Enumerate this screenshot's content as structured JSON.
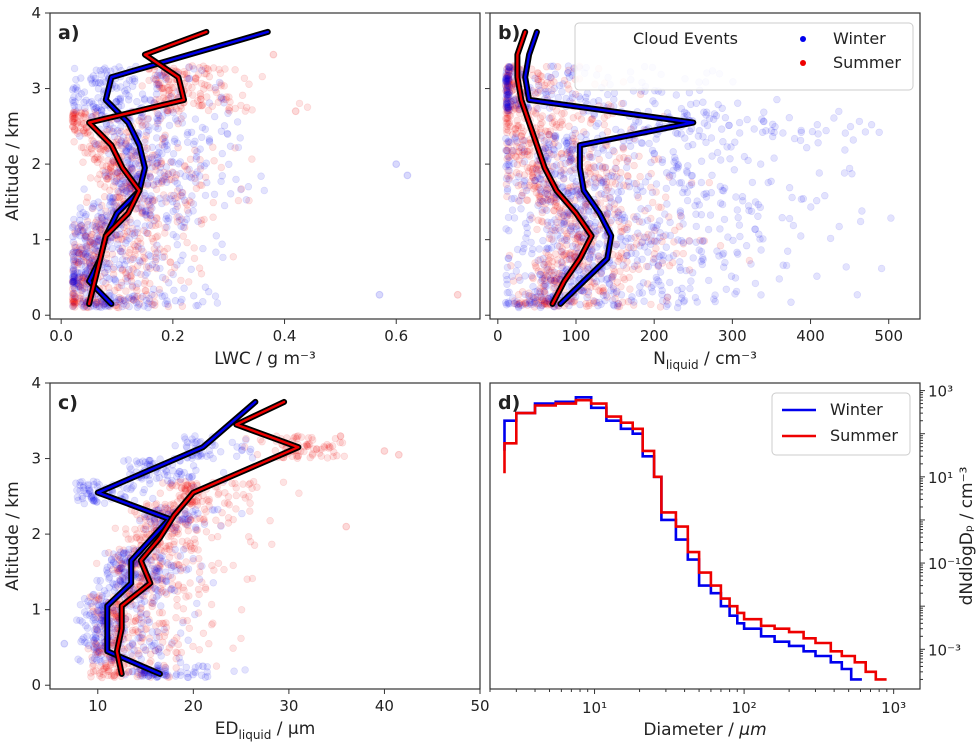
{
  "figure": {
    "legend_title": "Cloud Events",
    "legend_winter": "Winter",
    "legend_summer": "Summer"
  },
  "colors": {
    "winter": "#0000ee",
    "summer": "#ee0000",
    "outline": "#000000"
  },
  "chart_data": [
    {
      "panel": "a)",
      "type": "scatter",
      "xlabel": "LWC / g m⁻³",
      "ylabel": "Altitude / km",
      "xlim": [
        -0.02,
        0.75
      ],
      "ylim": [
        -0.05,
        4
      ],
      "xticks": [
        0.0,
        0.2,
        0.4,
        0.6
      ],
      "xticklabels": [
        "0.0",
        "0.2",
        "0.4",
        "0.6"
      ],
      "yticks": [
        0,
        1,
        2,
        3,
        4
      ],
      "scatter_cloud": {
        "winter": {
          "x_range": [
            0.02,
            0.65
          ],
          "y_range": [
            0.1,
            3.2
          ],
          "outliers": [
            [
              0.6,
              2.0
            ],
            [
              0.57,
              0.27
            ],
            [
              0.62,
              1.85
            ]
          ]
        },
        "summer": {
          "x_range": [
            0.02,
            0.72
          ],
          "y_range": [
            0.1,
            3.5
          ],
          "outliers": [
            [
              0.71,
              0.27
            ],
            [
              0.42,
              2.7
            ],
            [
              0.38,
              3.45
            ]
          ]
        }
      },
      "series": [
        {
          "name": "Winter",
          "profile": [
            [
              0.09,
              0.15
            ],
            [
              0.05,
              0.45
            ],
            [
              0.07,
              0.75
            ],
            [
              0.08,
              1.05
            ],
            [
              0.1,
              1.35
            ],
            [
              0.14,
              1.65
            ],
            [
              0.15,
              1.95
            ],
            [
              0.14,
              2.25
            ],
            [
              0.12,
              2.55
            ],
            [
              0.08,
              2.85
            ],
            [
              0.09,
              3.15
            ],
            [
              0.37,
              3.75
            ]
          ]
        },
        {
          "name": "Summer",
          "profile": [
            [
              0.05,
              0.15
            ],
            [
              0.06,
              0.45
            ],
            [
              0.07,
              0.75
            ],
            [
              0.08,
              1.05
            ],
            [
              0.12,
              1.35
            ],
            [
              0.14,
              1.65
            ],
            [
              0.11,
              1.95
            ],
            [
              0.09,
              2.25
            ],
            [
              0.05,
              2.55
            ],
            [
              0.22,
              2.85
            ],
            [
              0.21,
              3.15
            ],
            [
              0.15,
              3.45
            ],
            [
              0.26,
              3.75
            ]
          ]
        }
      ]
    },
    {
      "panel": "b)",
      "type": "scatter",
      "xlabel_main": "N",
      "xlabel_sub": "liquid",
      "xlabel_rest": " / cm⁻³",
      "xlim": [
        -10,
        540
      ],
      "ylim": [
        -0.05,
        4
      ],
      "xticks": [
        0,
        100,
        200,
        300,
        400,
        500
      ],
      "xticklabels": [
        "0",
        "100",
        "200",
        "300",
        "400",
        "500"
      ],
      "yticks": [
        0,
        1,
        2,
        3,
        4
      ],
      "scatter_cloud": {
        "winter": {
          "x_range": [
            10,
            520
          ],
          "y_range": [
            0.1,
            3.3
          ]
        },
        "summer": {
          "x_range": [
            10,
            330
          ],
          "y_range": [
            0.1,
            3.3
          ]
        }
      },
      "series": [
        {
          "name": "Winter",
          "profile": [
            [
              80,
              0.15
            ],
            [
              110,
              0.45
            ],
            [
              140,
              0.75
            ],
            [
              145,
              1.05
            ],
            [
              130,
              1.35
            ],
            [
              110,
              1.65
            ],
            [
              105,
              1.95
            ],
            [
              105,
              2.25
            ],
            [
              250,
              2.55
            ],
            [
              40,
              2.85
            ],
            [
              35,
              3.15
            ],
            [
              40,
              3.45
            ],
            [
              50,
              3.75
            ]
          ]
        },
        {
          "name": "Summer",
          "profile": [
            [
              70,
              0.15
            ],
            [
              85,
              0.45
            ],
            [
              105,
              0.75
            ],
            [
              120,
              1.05
            ],
            [
              100,
              1.35
            ],
            [
              75,
              1.65
            ],
            [
              60,
              1.95
            ],
            [
              50,
              2.25
            ],
            [
              40,
              2.55
            ],
            [
              30,
              2.85
            ],
            [
              25,
              3.15
            ],
            [
              25,
              3.45
            ],
            [
              35,
              3.75
            ]
          ]
        }
      ]
    },
    {
      "panel": "c)",
      "type": "scatter",
      "xlabel_main": "ED",
      "xlabel_sub": "liquid",
      "xlabel_rest": " / μm",
      "ylabel": "Altitude / km",
      "xlim": [
        5,
        50
      ],
      "ylim": [
        -0.05,
        4
      ],
      "xticks": [
        10,
        20,
        30,
        40,
        50
      ],
      "xticklabels": [
        "10",
        "20",
        "30",
        "40",
        "50"
      ],
      "yticks": [
        0,
        1,
        2,
        3,
        4
      ],
      "scatter_cloud": {
        "winter": {
          "x_range": [
            7,
            30
          ],
          "y_range": [
            0.1,
            3.3
          ],
          "outliers": [
            [
              21,
              0.25
            ],
            [
              6.5,
              0.55
            ]
          ]
        },
        "summer": {
          "x_range": [
            8,
            42
          ],
          "y_range": [
            0.1,
            3.5
          ],
          "outliers": [
            [
              40,
              3.1
            ],
            [
              41.5,
              3.05
            ],
            [
              36,
              2.1
            ]
          ]
        }
      },
      "series": [
        {
          "name": "Winter",
          "profile": [
            [
              16.5,
              0.15
            ],
            [
              11,
              0.45
            ],
            [
              11,
              0.75
            ],
            [
              11,
              1.05
            ],
            [
              13.5,
              1.35
            ],
            [
              13.5,
              1.65
            ],
            [
              17.5,
              2.2
            ],
            [
              10,
              2.55
            ],
            [
              15.5,
              2.85
            ],
            [
              21,
              3.15
            ],
            [
              26.5,
              3.75
            ]
          ]
        },
        {
          "name": "Summer",
          "profile": [
            [
              12.5,
              0.15
            ],
            [
              12,
              0.45
            ],
            [
              12.5,
              0.75
            ],
            [
              12.5,
              1.05
            ],
            [
              15.5,
              1.35
            ],
            [
              14.5,
              1.65
            ],
            [
              16.5,
              1.95
            ],
            [
              18,
              2.25
            ],
            [
              20,
              2.55
            ],
            [
              31,
              3.15
            ],
            [
              24.5,
              3.45
            ],
            [
              29.5,
              3.75
            ]
          ]
        }
      ]
    },
    {
      "panel": "d)",
      "type": "line",
      "xlabel_main": "Diameter / ",
      "xlabel_unit": "μm",
      "ylabel": "dNdlogDₚ / cm⁻³",
      "xscale": "log",
      "yscale": "log",
      "xlim": [
        2,
        1500
      ],
      "ylim": [
        0.00012,
        1500
      ],
      "xticks": [
        10,
        100,
        1000
      ],
      "xticklabels": [
        "10¹",
        "10²",
        "10³"
      ],
      "yticks": [
        0.001,
        0.1,
        10,
        1000
      ],
      "yticklabels": [
        "10⁻³",
        "10⁻¹",
        "10¹",
        "10³"
      ],
      "legend": "top-right",
      "series": [
        {
          "name": "Winter",
          "steps": [
            [
              2.5,
              200
            ],
            [
              3,
              300
            ],
            [
              4,
              500
            ],
            [
              5.5,
              550
            ],
            [
              7.5,
              700
            ],
            [
              9.5,
              400
            ],
            [
              12,
              200
            ],
            [
              15,
              130
            ],
            [
              18,
              100
            ],
            [
              21,
              30
            ],
            [
              25,
              10
            ],
            [
              28,
              1
            ],
            [
              35,
              0.35
            ],
            [
              42,
              0.12
            ],
            [
              50,
              0.03
            ],
            [
              60,
              0.02
            ],
            [
              70,
              0.01
            ],
            [
              80,
              0.006
            ],
            [
              90,
              0.004
            ],
            [
              100,
              0.003
            ],
            [
              130,
              0.002
            ],
            [
              160,
              0.0015
            ],
            [
              200,
              0.0012
            ],
            [
              250,
              0.0009
            ],
            [
              300,
              0.0007
            ],
            [
              380,
              0.0005
            ],
            [
              450,
              0.00035
            ],
            [
              520,
              0.0002
            ]
          ]
        },
        {
          "name": "Summer",
          "steps": [
            [
              2.5,
              60
            ],
            [
              3,
              300
            ],
            [
              4,
              450
            ],
            [
              5.5,
              500
            ],
            [
              7.5,
              600
            ],
            [
              9.5,
              500
            ],
            [
              12,
              250
            ],
            [
              15,
              180
            ],
            [
              18,
              130
            ],
            [
              21,
              40
            ],
            [
              25,
              10
            ],
            [
              28,
              1.5
            ],
            [
              35,
              0.7
            ],
            [
              42,
              0.18
            ],
            [
              50,
              0.06
            ],
            [
              60,
              0.03
            ],
            [
              70,
              0.015
            ],
            [
              80,
              0.01
            ],
            [
              90,
              0.007
            ],
            [
              100,
              0.005
            ],
            [
              130,
              0.0035
            ],
            [
              160,
              0.003
            ],
            [
              200,
              0.0025
            ],
            [
              250,
              0.0018
            ],
            [
              300,
              0.0014
            ],
            [
              380,
              0.0009
            ],
            [
              450,
              0.0007
            ],
            [
              550,
              0.0005
            ],
            [
              650,
              0.0003
            ],
            [
              760,
              0.0002
            ]
          ]
        }
      ]
    }
  ]
}
